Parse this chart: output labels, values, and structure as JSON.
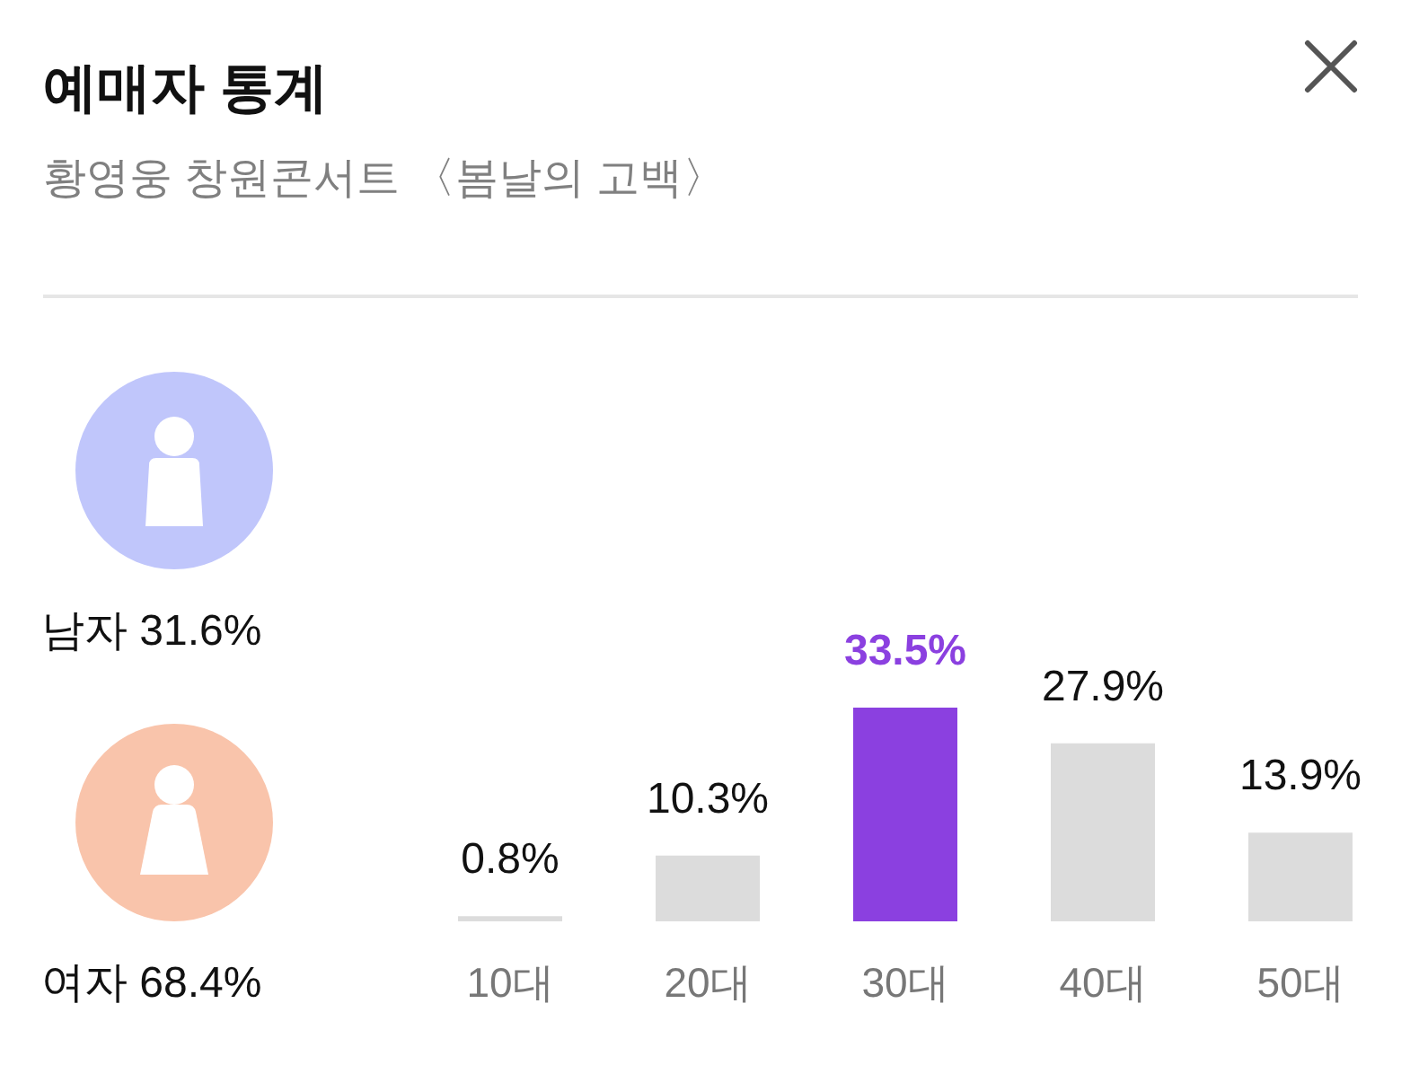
{
  "chart_data": {
    "type": "bar",
    "title": "예매자 통계",
    "subtitle": "황영웅 창원콘서트 〈봄날의 고백〉",
    "annotations": [
      "남자 31.6%",
      "여자 68.4%"
    ],
    "categories": [
      "10대",
      "20대",
      "30대",
      "40대",
      "50대"
    ],
    "values": [
      0.8,
      10.3,
      33.5,
      27.9,
      13.9
    ],
    "value_labels": [
      "0.8%",
      "10.3%",
      "33.5%",
      "27.9%",
      "13.9%"
    ],
    "colors": [
      "#dcdcdc",
      "#dcdcdc",
      "#8b40e0",
      "#dcdcdc",
      "#dcdcdc"
    ]
  }
}
